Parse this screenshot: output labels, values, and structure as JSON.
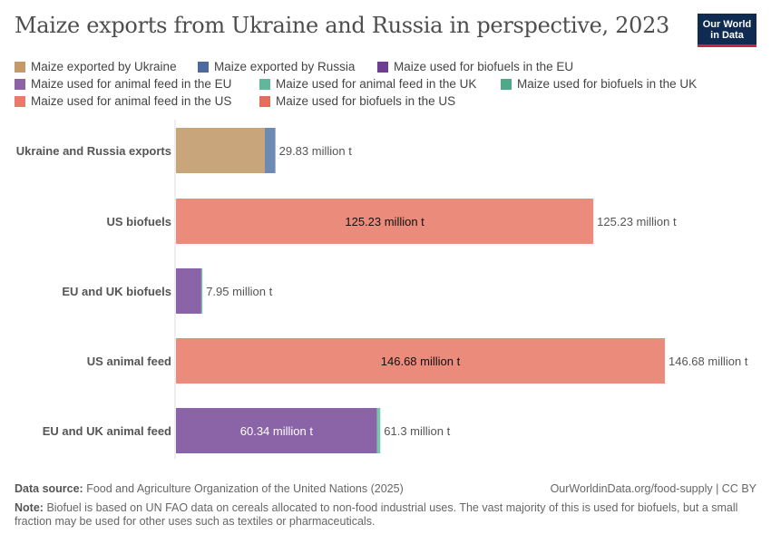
{
  "title": "Maize exports from Ukraine and Russia in perspective, 2023",
  "logo": "Our World in Data",
  "chart_data": {
    "type": "bar",
    "orientation": "horizontal",
    "stacked": true,
    "unit": "million t",
    "categories": [
      "Ukraine and Russia exports",
      "US biofuels",
      "EU and UK biofuels",
      "US animal feed",
      "EU and UK animal feed"
    ],
    "series": [
      {
        "name": "Maize exported by Ukraine",
        "color": "#c8a57a",
        "legend_color": "#c49a6c",
        "values": [
          26.66,
          0,
          0,
          0,
          0
        ]
      },
      {
        "name": "Maize exported by Russia",
        "color": "#6d8ab5",
        "legend_color": "#4c6a9c",
        "values": [
          3.17,
          0,
          0,
          0,
          0
        ]
      },
      {
        "name": "Maize used for biofuels in the EU",
        "color": "#8b64a7",
        "legend_color": "#6d3e91",
        "values": [
          0,
          0,
          7.6,
          0,
          0
        ]
      },
      {
        "name": "Maize used for animal feed in the EU",
        "color": "#8b64a7",
        "legend_color": "#8c64a6",
        "values": [
          0,
          0,
          0,
          0,
          60.34
        ]
      },
      {
        "name": "Maize used for animal feed in the UK",
        "color": "#74c7a7",
        "legend_color": "#5fb89a",
        "values": [
          0,
          0,
          0,
          0,
          0.96
        ]
      },
      {
        "name": "Maize used for biofuels in the UK",
        "color": "#74c7a7",
        "legend_color": "#4fa888",
        "values": [
          0,
          0,
          0.35,
          0,
          0
        ]
      },
      {
        "name": "Maize used for animal feed in the US",
        "color": "#eb8b7b",
        "legend_color": "#ec7a6a",
        "values": [
          0,
          0,
          0,
          146.68,
          0
        ]
      },
      {
        "name": "Maize used for biofuels in the US",
        "color": "#eb8b7b",
        "legend_color": "#e56e5a",
        "values": [
          0,
          125.23,
          0,
          0,
          0
        ]
      }
    ],
    "totals": [
      "29.83 million t",
      "125.23 million t",
      "7.95 million t",
      "146.68 million t",
      "61.3 million t"
    ],
    "inner_labels": [
      "",
      "125.23 million t",
      "",
      "146.68 million t",
      "60.34 million t"
    ],
    "xlim": [
      0,
      146.68
    ]
  },
  "footer": {
    "source_label": "Data source:",
    "source": "Food and Agriculture Organization of the United Nations (2025)",
    "url": "OurWorldinData.org/food-supply | CC BY",
    "note_label": "Note:",
    "note": "Biofuel is based on UN FAO data on cereals allocated to non-food industrial uses. The vast majority of this is used for biofuels, but a small fraction may be used for other uses such as textiles or pharmaceuticals."
  }
}
